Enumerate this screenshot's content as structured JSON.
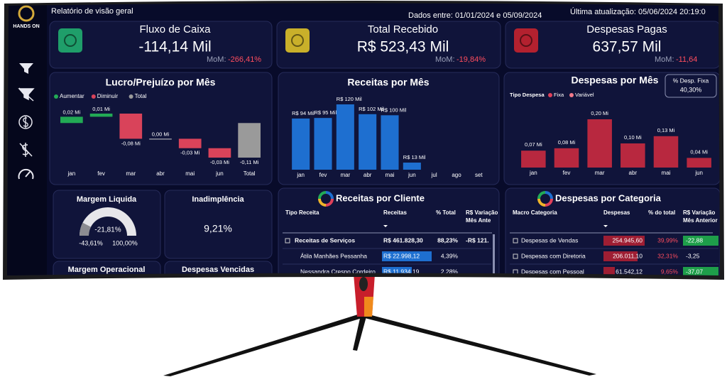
{
  "header": {
    "brand": "HANDS ON",
    "title": "Relatório de visão geral",
    "date_range": "Dados entre: 01/01/2024 e 05/09/2024",
    "last_update": "Última atualização: 05/06/2024 20:19:0"
  },
  "kpis": [
    {
      "title": "Fluxo de Caixa",
      "value": "-114,14 Mil",
      "mom_label": "MoM:",
      "mom": "-266,41%",
      "icon_color": "#1f9e6a"
    },
    {
      "title": "Total Recebido",
      "value": "R$ 523,43 Mil",
      "mom_label": "MoM:",
      "mom": "-19,84%",
      "icon_color": "#c9b02a"
    },
    {
      "title": "Despesas Pagas",
      "value": "637,57 Mil",
      "mom_label": "MoM:",
      "mom": "-11,64",
      "icon_color": "#b3212f"
    }
  ],
  "lucro": {
    "type": "waterfall",
    "title": "Lucro/Prejuízo por Mês",
    "legend": [
      {
        "name": "Aumentar",
        "color": "#22aa55"
      },
      {
        "name": "Diminuir",
        "color": "#d9435a"
      },
      {
        "name": "Total",
        "color": "#9a9a9a"
      }
    ],
    "categories": [
      "jan",
      "fev",
      "mar",
      "abr",
      "mai",
      "jun",
      "Total"
    ],
    "values": [
      0.02,
      0.01,
      -0.08,
      0,
      -0.03,
      -0.03,
      -0.11
    ],
    "value_labels": [
      "0,02 Mi",
      "0,01 Mi",
      "-0,08 Mi",
      "0,00 Mi",
      "-0,03 Mi",
      "-0,03 Mi",
      "-0,11 Mi"
    ]
  },
  "receitas_mes": {
    "type": "bar",
    "title": "Receitas por Mês",
    "categories": [
      "jan",
      "fev",
      "mar",
      "abr",
      "mai",
      "jun",
      "jul",
      "ago",
      "set"
    ],
    "values": [
      94,
      95,
      120,
      102,
      100,
      13,
      null,
      null,
      null
    ],
    "value_labels": [
      "R$ 94 Mil",
      "R$ 95 Mil",
      "R$ 120 Mil",
      "R$ 102 Mil",
      "R$ 100 Mil",
      "R$ 13 Mil",
      null,
      null,
      null
    ],
    "color": "#1e6fd0"
  },
  "despesas_mes": {
    "type": "bar",
    "title": "Despesas por Mês",
    "legend_title": "Tipo Despesa",
    "legend": [
      {
        "name": "Fixa",
        "color": "#e0405a"
      },
      {
        "name": "Variável",
        "color": "#f27a8a"
      }
    ],
    "categories": [
      "jan",
      "fev",
      "mar",
      "abr",
      "mai",
      "jun"
    ],
    "values": [
      0.07,
      0.08,
      0.2,
      0.1,
      0.13,
      0.04
    ],
    "value_labels": [
      "0,07 Mi",
      "0,08 Mi",
      "0,20 Mi",
      "0,10 Mi",
      "0,13 Mi",
      "0,04 Mi"
    ],
    "color": "#b8283f",
    "badge_title": "% Desp. Fixa",
    "badge_value": "40,30%"
  },
  "margem_liquida": {
    "title": "Margem Liquida",
    "value": -21.81,
    "value_label": "-21,81%",
    "min": -43.61,
    "min_label": "-43,61%",
    "max": 100,
    "max_label": "100,00%"
  },
  "inadimplencia": {
    "title": "Inadimplência",
    "value": "9,21%"
  },
  "margem_operacional": {
    "title": "Margem Operacional"
  },
  "despesas_vencidas": {
    "title": "Despesas Vencidas"
  },
  "receitas_cliente": {
    "title": "Receitas por Cliente",
    "columns": [
      "Tipo Receita",
      "Receitas",
      "% Total",
      [
        "R$ Variação",
        "Mês Ante"
      ]
    ],
    "rows": [
      [
        "Receitas de Serviços",
        "R$ 461.828,30",
        "88,23%",
        "-R$ 121."
      ],
      [
        "Átila Manhães Pessanha",
        "R$ 22.998,12",
        "4,39%"
      ],
      [
        "Nessandra Crespo Cordeiro",
        "R$ 11.934,19",
        "2,28%"
      ]
    ]
  },
  "despesas_categoria": {
    "title": "Despesas por Categoria",
    "columns": [
      "Macro Categoria",
      "Despesas",
      "% do total",
      [
        "R$ Variação",
        "Mês Anterior"
      ]
    ],
    "rows": [
      [
        "Despesas de Vendas",
        "254.945,60",
        "39,99%",
        "-22,88"
      ],
      [
        "Despesas com Diretoria",
        "206.011,10",
        "32,31%",
        "-3,25"
      ],
      [
        "Despesas com Pessoal",
        "61.542,12",
        "9,65%",
        "-37,07"
      ]
    ]
  }
}
